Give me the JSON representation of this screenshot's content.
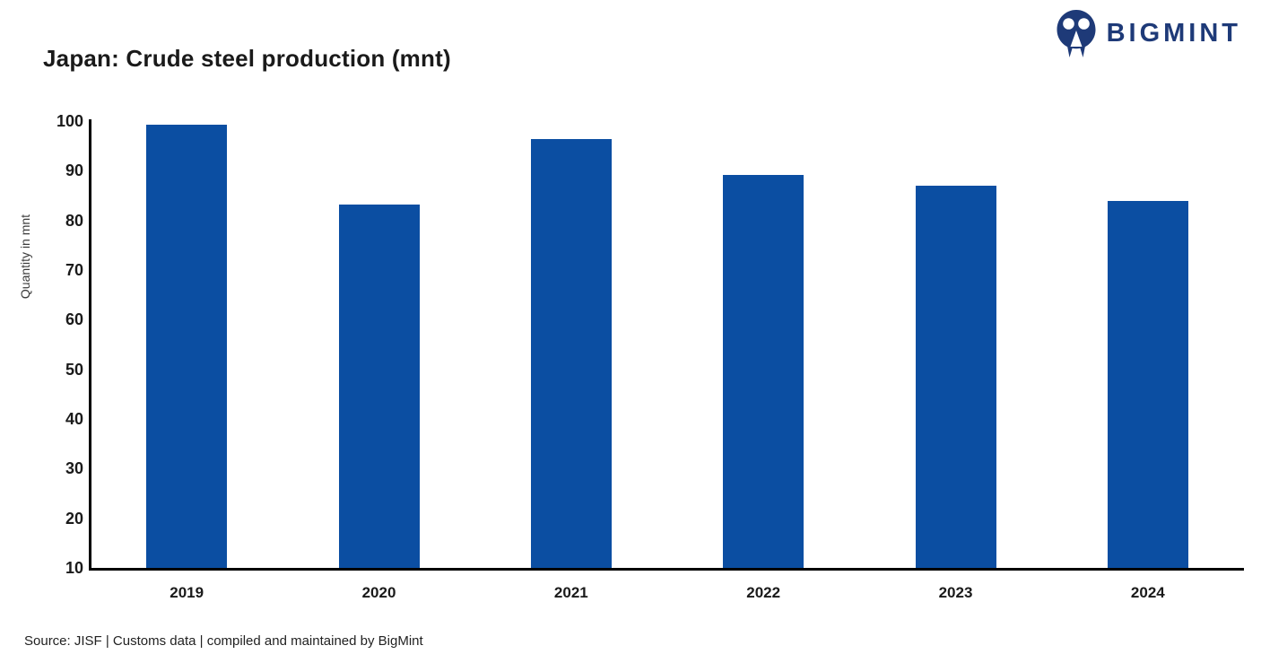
{
  "header": {
    "title": "Japan: Crude steel production (mnt)",
    "logo": {
      "text": "BIGMINT",
      "color": "#1e3a78",
      "icon": "bigmint-people-arch-icon"
    }
  },
  "chart_data": {
    "type": "bar",
    "title": "Japan: Crude steel production (mnt)",
    "categories": [
      "2019",
      "2020",
      "2021",
      "2022",
      "2023",
      "2024"
    ],
    "values": [
      99.3,
      83.2,
      96.3,
      89.2,
      87.0,
      84.0
    ],
    "xlabel": "",
    "ylabel": "Quantity in mnt",
    "ylim": [
      10,
      100
    ],
    "yticks": [
      100,
      90,
      80,
      70,
      60,
      50,
      40,
      30,
      20,
      10
    ],
    "bar_color": "#0b4ea2",
    "grid": false,
    "legend": false
  },
  "footer": {
    "source": "Source: JISF | Customs data | compiled and maintained by BigMint"
  }
}
